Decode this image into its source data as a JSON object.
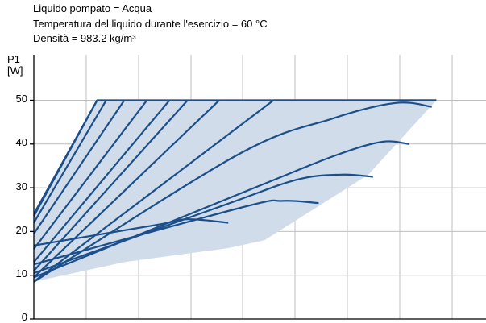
{
  "header": {
    "liquid": "Liquido pompato = Acqua",
    "temperature": "Temperatura del liquido durante l'esercizio = 60 °C",
    "density": "Densità = 983.2 kg/m³"
  },
  "chart_data": {
    "type": "line",
    "ylabel_line1": "P1",
    "ylabel_line2": "[W]",
    "ylim": [
      0,
      50
    ],
    "yticks": [
      "0",
      "10",
      "20",
      "30",
      "40",
      "50"
    ],
    "xlim": [
      0,
      1
    ],
    "grid": true,
    "legend": "none",
    "colors": {
      "curve": "#1a4f8c",
      "fill": "#d0dcea",
      "grid": "#bfbfbf"
    },
    "series": [
      {
        "x": [
          0,
          0.27,
          0.34,
          0.43
        ],
        "y": [
          16.8,
          21.5,
          22.8,
          22.0
        ]
      },
      {
        "x": [
          0,
          0.46,
          0.55,
          0.63
        ],
        "y": [
          12.5,
          25.5,
          27.0,
          26.5
        ]
      },
      {
        "x": [
          0,
          0.42,
          0.58,
          0.68,
          0.75
        ],
        "y": [
          10.5,
          26.0,
          31.8,
          33.0,
          32.5
        ]
      },
      {
        "x": [
          0,
          0.5,
          0.67,
          0.77,
          0.83
        ],
        "y": [
          9.5,
          30.5,
          37.5,
          40.5,
          40.0
        ]
      },
      {
        "x": [
          0,
          0.45,
          0.66,
          0.8,
          0.88
        ],
        "y": [
          8.5,
          37.5,
          45.8,
          49.4,
          48.5
        ]
      },
      {
        "x": [
          0,
          0.53,
          0.89
        ],
        "y": [
          8.5,
          50,
          50
        ]
      },
      {
        "x": [
          0,
          0.41
        ],
        "y": [
          9.5,
          50
        ]
      },
      {
        "x": [
          0,
          0.34
        ],
        "y": [
          11.0,
          50
        ]
      },
      {
        "x": [
          0,
          0.3
        ],
        "y": [
          13.0,
          50
        ]
      },
      {
        "x": [
          0,
          0.25
        ],
        "y": [
          16.0,
          50
        ]
      },
      {
        "x": [
          0,
          0.2
        ],
        "y": [
          19.5,
          50
        ]
      },
      {
        "x": [
          0,
          0.16
        ],
        "y": [
          22.0,
          50
        ]
      },
      {
        "x": [
          0,
          0.14
        ],
        "y": [
          23.5,
          50
        ]
      },
      {
        "x": [
          0,
          0.14,
          0.89
        ],
        "y": [
          24.0,
          50,
          50
        ]
      }
    ],
    "envelope": {
      "x": [
        0,
        0.14,
        0.89,
        0.74,
        0.51,
        0.43,
        0.2,
        0
      ],
      "y": [
        24.0,
        50,
        50,
        33,
        18,
        16.2,
        13.0,
        8.5
      ]
    }
  }
}
